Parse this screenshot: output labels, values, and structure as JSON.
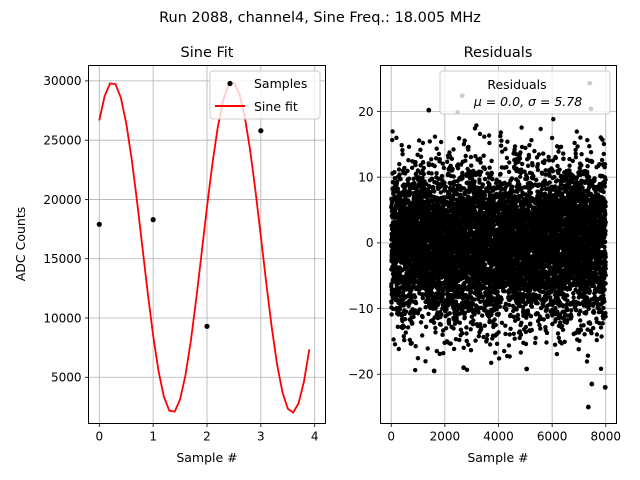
{
  "figure": {
    "suptitle": "Run 2088, channel4, Sine Freq.: 18.005 MHz"
  },
  "colors": {
    "fit": "#ff0000",
    "samples": "#000000",
    "grid": "#b0b0b0",
    "axes": "#000000"
  },
  "chart_data": [
    {
      "type": "line",
      "title": "Sine Fit",
      "xlabel": "Sample #",
      "ylabel": "ADC Counts",
      "xlim": [
        -0.2,
        4.2
      ],
      "ylim": [
        1100,
        31300
      ],
      "xticks": [
        0,
        1,
        2,
        3,
        4
      ],
      "yticks": [
        5000,
        10000,
        15000,
        20000,
        25000,
        30000
      ],
      "grid": true,
      "legend": {
        "placement": "upper right",
        "entries": [
          "Samples",
          "Sine fit"
        ]
      },
      "series": [
        {
          "name": "Samples",
          "style": "scatter",
          "x": [
            0,
            1,
            2,
            3
          ],
          "y": [
            17900,
            18300,
            9300,
            25800
          ]
        },
        {
          "name": "Sine fit",
          "style": "line",
          "fit_params": {
            "offset": 15950,
            "amplitude": 13950,
            "freq_cycles_per_sample": 0.45,
            "phase_rad": 0.876
          },
          "x_range": [
            0,
            3.9
          ],
          "x_step": 0.1
        }
      ]
    },
    {
      "type": "scatter",
      "title": "Residuals",
      "xlabel": "Sample #",
      "ylabel": "",
      "xlim": [
        -400,
        8400
      ],
      "ylim": [
        -27.5,
        27
      ],
      "xticks": [
        0,
        2000,
        4000,
        6000,
        8000
      ],
      "yticks": [
        -20,
        -10,
        0,
        10,
        20
      ],
      "grid": true,
      "legend": {
        "placement": "upper right",
        "line1": "Residuals",
        "line2": "μ = 0.0, σ = 5.78"
      },
      "series": [
        {
          "name": "Residuals",
          "n_points": 8000,
          "mean": 0.0,
          "std": 5.78,
          "outliers": [
            {
              "x": 7400,
              "y": 24.3
            },
            {
              "x": 2650,
              "y": 22.4
            },
            {
              "x": 1400,
              "y": 20.2
            },
            {
              "x": 7450,
              "y": 20.4
            },
            {
              "x": 7350,
              "y": -25.0
            },
            {
              "x": 7980,
              "y": -22.0
            },
            {
              "x": 7480,
              "y": -21.5
            },
            {
              "x": 1600,
              "y": -19.5
            },
            {
              "x": 2700,
              "y": -19.0
            },
            {
              "x": 5050,
              "y": -19.2
            }
          ]
        }
      ]
    }
  ]
}
